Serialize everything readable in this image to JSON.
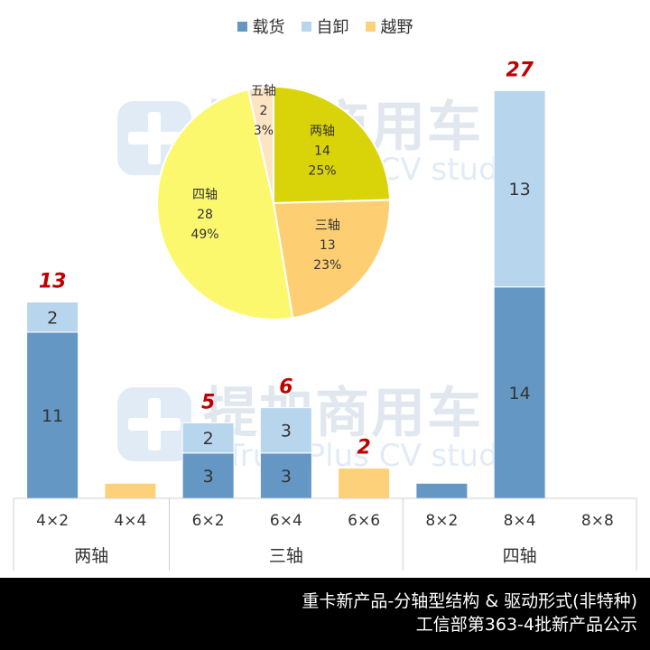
{
  "chart_data": [
    {
      "type": "bar",
      "stacked": true,
      "categories": [
        "4×2",
        "4×4",
        "6×2",
        "6×4",
        "6×6",
        "8×2",
        "8×4",
        "8×8"
      ],
      "groups": [
        {
          "label": "两轴",
          "categories": [
            "4×2",
            "4×4"
          ]
        },
        {
          "label": "三轴",
          "categories": [
            "6×2",
            "6×4",
            "6×6"
          ]
        },
        {
          "label": "四轴",
          "categories": [
            "8×2",
            "8×4",
            "8×8"
          ]
        }
      ],
      "series": [
        {
          "name": "载货",
          "color": "#6497c4",
          "values": [
            11,
            0,
            3,
            3,
            0,
            1,
            14,
            0
          ]
        },
        {
          "name": "自卸",
          "color": "#b8d5ee",
          "values": [
            2,
            0,
            2,
            3,
            0,
            0,
            13,
            0
          ]
        },
        {
          "name": "越野",
          "color": "#fdd07a",
          "values": [
            0,
            1,
            0,
            0,
            2,
            0,
            0,
            0
          ]
        }
      ],
      "segment_labels": [
        [
          "11",
          "",
          "3",
          "3",
          "",
          "",
          "14",
          ""
        ],
        [
          "2",
          "",
          "2",
          "3",
          "",
          "",
          "13",
          ""
        ],
        [
          "",
          "",
          "",
          "",
          "",
          "",
          "",
          ""
        ]
      ],
      "totals": [
        "13",
        "",
        "5",
        "6",
        "2",
        "",
        "27",
        ""
      ],
      "ylim": [
        0,
        27.5
      ],
      "legend": "top-center",
      "grid": false
    },
    {
      "type": "pie",
      "slices": [
        {
          "label": "两轴",
          "value": 14,
          "percent": "25%",
          "color": "#d9d40a"
        },
        {
          "label": "三轴",
          "value": 13,
          "percent": "23%",
          "color": "#fdcf72"
        },
        {
          "label": "四轴",
          "value": 28,
          "percent": "49%",
          "color": "#fcf86e"
        },
        {
          "label": "五轴",
          "value": 2,
          "percent": "3%",
          "color": "#fde4c2"
        }
      ]
    }
  ],
  "watermark": {
    "cn": "提加商用车",
    "en": "TruckPlus CV studio"
  },
  "footer": {
    "line1": "重卡新产品-分轴型结构 & 驱动形式(非特种)",
    "line2": "工信部第363-4批新产品公示"
  }
}
